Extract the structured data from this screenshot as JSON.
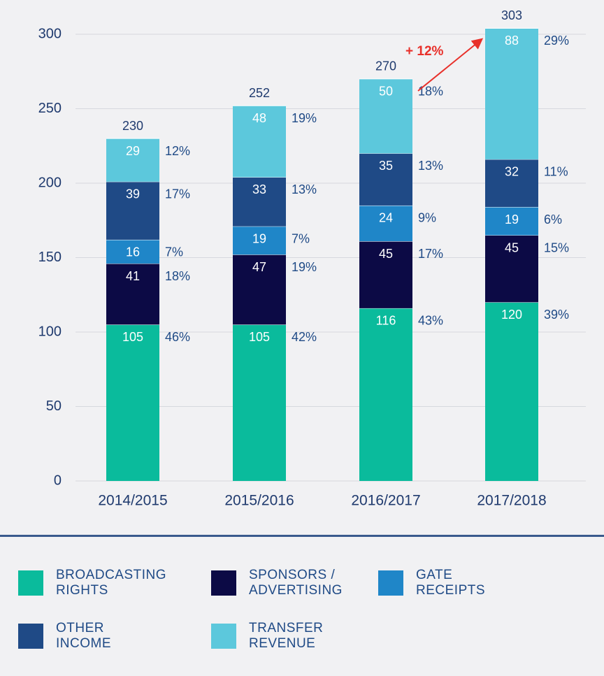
{
  "chart_data": {
    "type": "stacked_bar",
    "categories": [
      "2014/2015",
      "2015/2016",
      "2016/2017",
      "2017/2018"
    ],
    "series": [
      {
        "name": "BROADCASTING RIGHTS",
        "color": "#0abb9c",
        "values": [
          105,
          105,
          116,
          120
        ],
        "share_labels": [
          "46%",
          "42%",
          "43%",
          "39%"
        ]
      },
      {
        "name": "SPONSORS / ADVERTISING",
        "color": "#0c0a45",
        "values": [
          41,
          47,
          45,
          45
        ],
        "share_labels": [
          "18%",
          "19%",
          "17%",
          "15%"
        ]
      },
      {
        "name": "GATE RECEIPTS",
        "color": "#1f86c8",
        "values": [
          16,
          19,
          24,
          19
        ],
        "share_labels": [
          "7%",
          "7%",
          "9%",
          "6%"
        ]
      },
      {
        "name": "OTHER INCOME",
        "color": "#1f4a86",
        "values": [
          39,
          33,
          35,
          32
        ],
        "share_labels": [
          "17%",
          "13%",
          "13%",
          "11%"
        ]
      },
      {
        "name": "TRANSFER REVENUE",
        "color": "#5cc8dc",
        "values": [
          29,
          48,
          50,
          88
        ],
        "share_labels": [
          "12%",
          "19%",
          "18%",
          "29%"
        ]
      }
    ],
    "totals": [
      230,
      252,
      270,
      303
    ],
    "annotation": "+ 12%",
    "ylim": [
      0,
      300
    ],
    "yticks": [
      0,
      50,
      100,
      150,
      200,
      250,
      300
    ],
    "grid": true
  }
}
